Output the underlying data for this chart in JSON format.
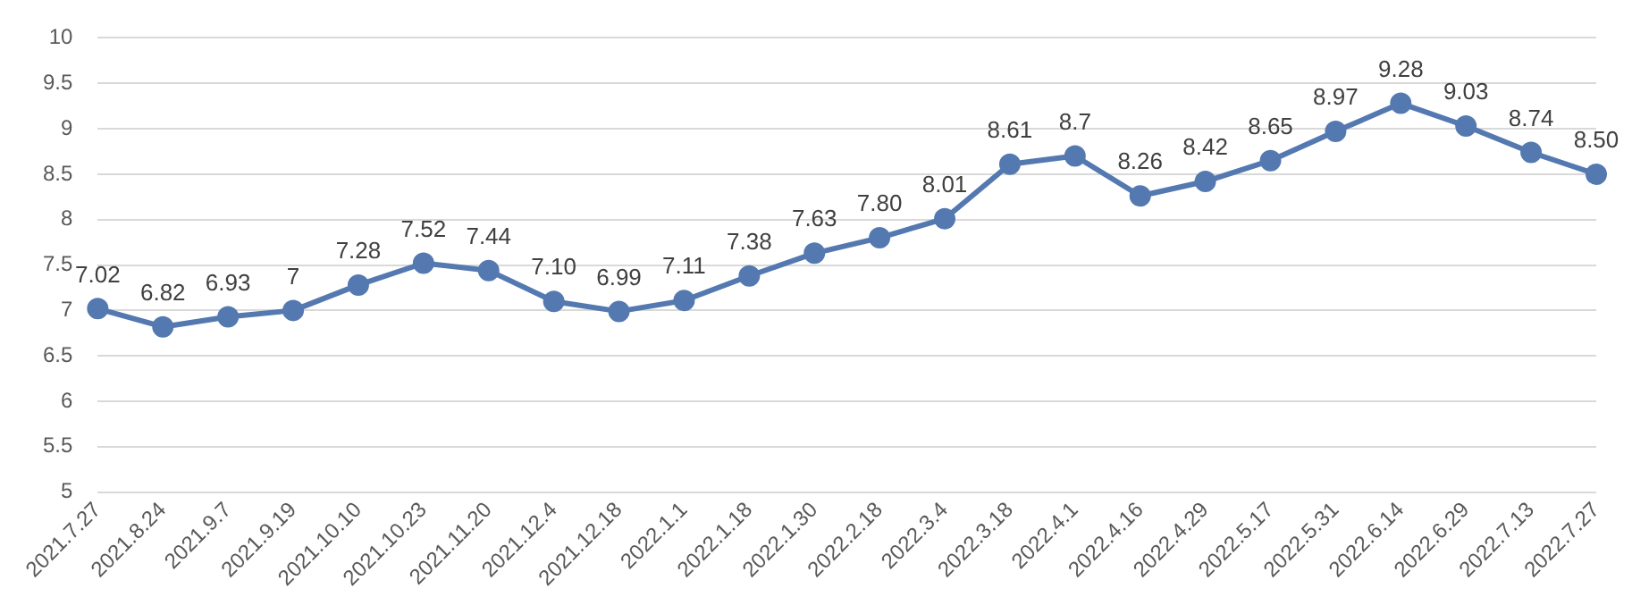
{
  "chart_data": {
    "type": "line",
    "categories": [
      "2021.7.27",
      "2021.8.24",
      "2021.9.7",
      "2021.9.19",
      "2021.10.10",
      "2021.10.23",
      "2021.11.20",
      "2021.12.4",
      "2021.12.18",
      "2022.1.1",
      "2022.1.18",
      "2022.1.30",
      "2022.2.18",
      "2022.3.4",
      "2022.3.18",
      "2022.4.1",
      "2022.4.16",
      "2022.4.29",
      "2022.5.17",
      "2022.5.31",
      "2022.6.14",
      "2022.6.29",
      "2022.7.13",
      "2022.7.27"
    ],
    "series": [
      {
        "color": "#5479b0",
        "values": [
          7.02,
          6.82,
          6.93,
          7,
          7.28,
          7.52,
          7.44,
          7.1,
          6.99,
          7.11,
          7.38,
          7.63,
          7.8,
          8.01,
          8.61,
          8.7,
          8.26,
          8.42,
          8.65,
          8.97,
          9.28,
          9.03,
          8.74,
          8.5
        ],
        "value_labels": [
          "7.02",
          "6.82",
          "6.93",
          "7",
          "7.28",
          "7.52",
          "7.44",
          "7.10",
          "6.99",
          "7.11",
          "7.38",
          "7.63",
          "7.80",
          "8.01",
          "8.61",
          "8.7",
          "8.26",
          "8.42",
          "8.65",
          "8.97",
          "9.28",
          "9.03",
          "8.74",
          "8.50"
        ]
      }
    ],
    "ylim": [
      5,
      10
    ],
    "yticks": [
      5,
      5.5,
      6,
      6.5,
      7,
      7.5,
      8,
      8.5,
      9,
      9.5,
      10
    ],
    "grid": "y",
    "legend": false,
    "marker": "circle",
    "line_style": "solid"
  }
}
